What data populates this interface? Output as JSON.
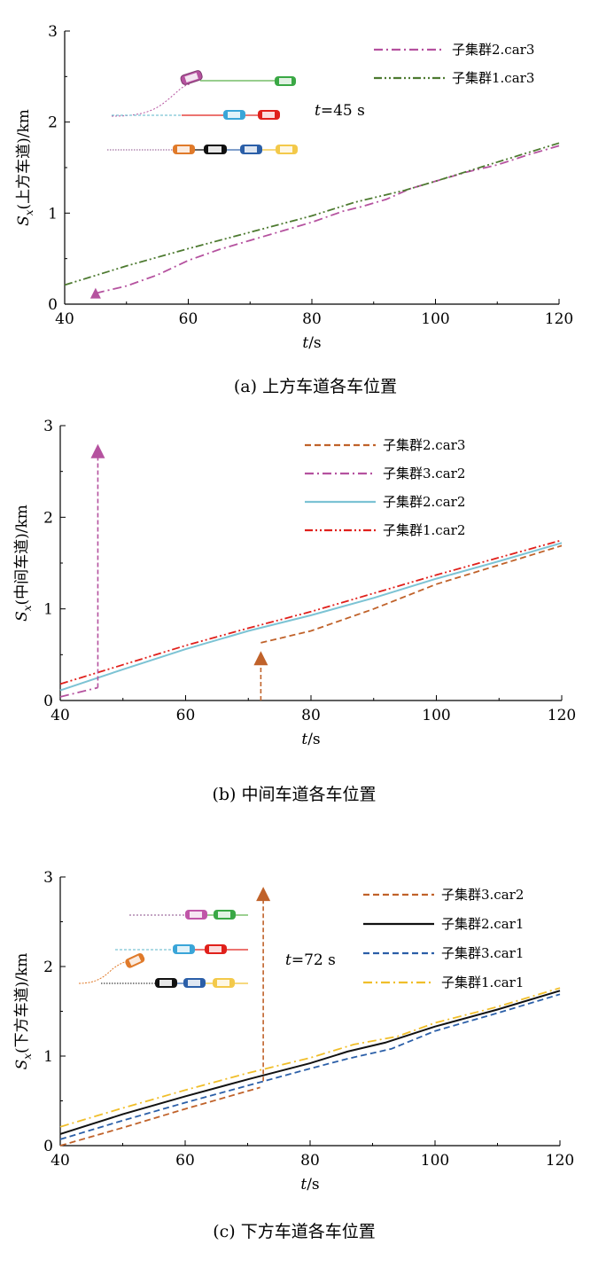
{
  "chart_data": [
    {
      "type": "line",
      "panel": "a",
      "caption": "(a)  上方车道各车位置",
      "xlabel_var": "t",
      "xlabel_unit": "/s",
      "ylabel_var": "S",
      "ylabel_sub": "x",
      "ylabel_text": "(上方车道)/km",
      "xlim": [
        40,
        120
      ],
      "ylim": [
        0,
        3
      ],
      "xticks": [
        40,
        60,
        80,
        100,
        120
      ],
      "yticks": [
        0,
        1,
        2,
        3
      ],
      "annotation": "t=45 s",
      "legend_position": "top-right",
      "series": [
        {
          "name": "子集群2.car3",
          "color": "#b5529f",
          "dash": "dashdot",
          "points": [
            [
              45,
              0.12
            ],
            [
              50,
              0.2
            ],
            [
              55,
              0.32
            ],
            [
              60,
              0.48
            ],
            [
              65,
              0.6
            ],
            [
              70,
              0.7
            ],
            [
              75,
              0.8
            ],
            [
              80,
              0.9
            ],
            [
              85,
              1.02
            ],
            [
              88,
              1.07
            ],
            [
              92,
              1.15
            ],
            [
              96,
              1.27
            ],
            [
              100,
              1.35
            ],
            [
              105,
              1.45
            ],
            [
              110,
              1.53
            ],
            [
              115,
              1.64
            ],
            [
              120,
              1.74
            ]
          ]
        },
        {
          "name": "子集群1.car3",
          "color": "#4d7a30",
          "dash": "dashdotdot",
          "points": [
            [
              40,
              0.21
            ],
            [
              50,
              0.42
            ],
            [
              60,
              0.61
            ],
            [
              70,
              0.79
            ],
            [
              80,
              0.97
            ],
            [
              87,
              1.12
            ],
            [
              95,
              1.25
            ],
            [
              100,
              1.35
            ],
            [
              110,
              1.56
            ],
            [
              120,
              1.77
            ]
          ]
        }
      ],
      "markers": [
        {
          "series": "子集群2.car3",
          "x": 45,
          "y": 0.12,
          "color": "#b5529f",
          "arrow_to": null
        }
      ]
    },
    {
      "type": "line",
      "panel": "b",
      "caption": "(b)  中间车道各车位置",
      "xlabel_var": "t",
      "xlabel_unit": "/s",
      "ylabel_var": "S",
      "ylabel_sub": "x",
      "ylabel_text": "(中间车道)/km",
      "xlim": [
        40,
        120
      ],
      "ylim": [
        0,
        3
      ],
      "xticks": [
        40,
        60,
        80,
        100,
        120
      ],
      "yticks": [
        0,
        1,
        2,
        3
      ],
      "legend_position": "top-right",
      "series": [
        {
          "name": "子集群2.car3",
          "color": "#c0622a",
          "dash": "dashed",
          "points": [
            [
              72,
              0.63
            ],
            [
              80,
              0.76
            ],
            [
              90,
              1.0
            ],
            [
              100,
              1.27
            ],
            [
              110,
              1.48
            ],
            [
              120,
              1.69
            ]
          ]
        },
        {
          "name": "子集群3.car2",
          "color": "#b5529f",
          "dash": "dashdot",
          "points": [
            [
              40,
              0.04
            ],
            [
              46,
              0.14
            ]
          ]
        },
        {
          "name": "子集群2.car2",
          "color": "#7cc3d4",
          "dash": "solid",
          "points": [
            [
              40,
              0.11
            ],
            [
              50,
              0.34
            ],
            [
              60,
              0.56
            ],
            [
              70,
              0.76
            ],
            [
              80,
              0.93
            ],
            [
              90,
              1.12
            ],
            [
              100,
              1.33
            ],
            [
              110,
              1.52
            ],
            [
              120,
              1.72
            ]
          ]
        },
        {
          "name": "子集群1.car2",
          "color": "#e0201b",
          "dash": "dashdotdot",
          "points": [
            [
              40,
              0.18
            ],
            [
              50,
              0.39
            ],
            [
              60,
              0.6
            ],
            [
              70,
              0.79
            ],
            [
              80,
              0.97
            ],
            [
              90,
              1.17
            ],
            [
              100,
              1.37
            ],
            [
              110,
              1.56
            ],
            [
              120,
              1.75
            ]
          ]
        }
      ],
      "markers": [
        {
          "series": "子集群3.car2",
          "x": 46,
          "y": 0.14,
          "color": "#b5529f",
          "arrow_to": 2.78
        },
        {
          "series": "子集群2.car3",
          "x": 72,
          "y": 0.0,
          "color": "#c0622a",
          "arrow_to": 0.52
        }
      ]
    },
    {
      "type": "line",
      "panel": "c",
      "caption": "(c)  下方车道各车位置",
      "xlabel_var": "t",
      "xlabel_unit": "/s",
      "ylabel_var": "S",
      "ylabel_sub": "x",
      "ylabel_text": "(下方车道)/km",
      "xlim": [
        40,
        120
      ],
      "ylim": [
        0,
        3
      ],
      "xticks": [
        40,
        60,
        80,
        100,
        120
      ],
      "yticks": [
        0,
        1,
        2,
        3
      ],
      "annotation": "t=72 s",
      "legend_position": "top-right",
      "series": [
        {
          "name": "子集群3.car2",
          "color": "#c0622a",
          "dash": "dashed",
          "points": [
            [
              40,
              0.0
            ],
            [
              50,
              0.2
            ],
            [
              60,
              0.41
            ],
            [
              72,
              0.65
            ]
          ]
        },
        {
          "name": "子集群2.car1",
          "color": "#111111",
          "dash": "solid",
          "points": [
            [
              40,
              0.13
            ],
            [
              50,
              0.35
            ],
            [
              60,
              0.55
            ],
            [
              70,
              0.74
            ],
            [
              80,
              0.92
            ],
            [
              86,
              1.05
            ],
            [
              92,
              1.15
            ],
            [
              100,
              1.33
            ],
            [
              110,
              1.52
            ],
            [
              120,
              1.73
            ]
          ]
        },
        {
          "name": "子集群3.car1",
          "color": "#2b5fa8",
          "dash": "dashed",
          "points": [
            [
              40,
              0.07
            ],
            [
              50,
              0.28
            ],
            [
              60,
              0.48
            ],
            [
              70,
              0.67
            ],
            [
              80,
              0.86
            ],
            [
              86,
              0.97
            ],
            [
              93,
              1.08
            ],
            [
              100,
              1.28
            ],
            [
              110,
              1.48
            ],
            [
              120,
              1.69
            ]
          ]
        },
        {
          "name": "子集群1.car1",
          "color": "#f0be2a",
          "dash": "dashdot",
          "points": [
            [
              40,
              0.21
            ],
            [
              50,
              0.42
            ],
            [
              60,
              0.62
            ],
            [
              70,
              0.81
            ],
            [
              80,
              0.98
            ],
            [
              87,
              1.13
            ],
            [
              94,
              1.22
            ],
            [
              100,
              1.37
            ],
            [
              110,
              1.55
            ],
            [
              120,
              1.76
            ]
          ]
        }
      ],
      "markers": [
        {
          "series": "子集群3.car2",
          "x": 72.5,
          "y": 0.72,
          "color": "#c0622a",
          "arrow_to": 2.87
        }
      ]
    }
  ]
}
